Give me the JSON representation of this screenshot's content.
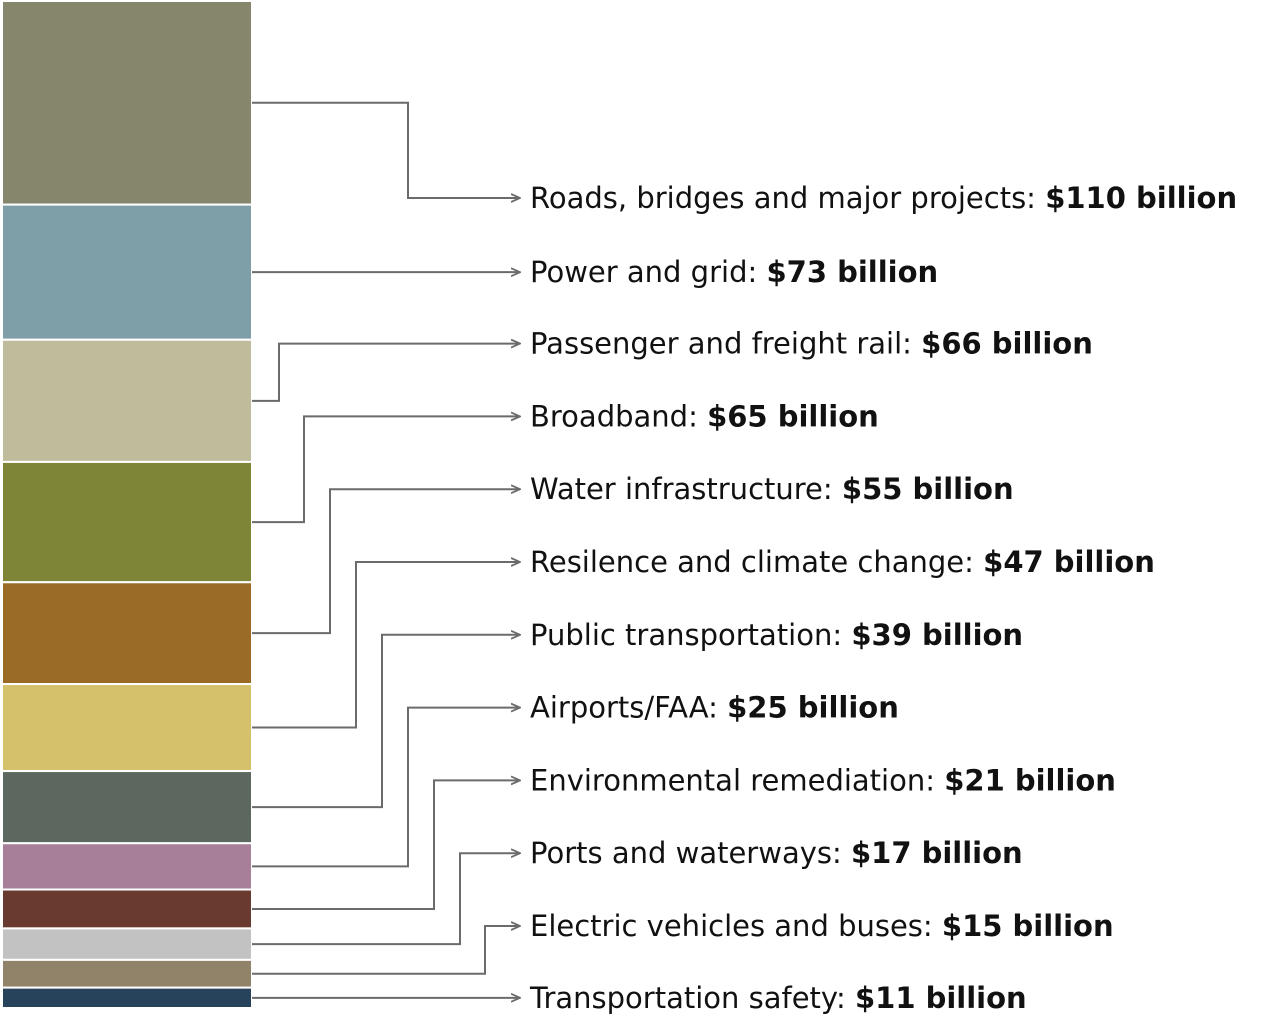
{
  "chart_data": {
    "type": "bar",
    "stacked": true,
    "orientation": "vertical-stack",
    "unit": "billion",
    "value_prefix": "$",
    "value_suffix": " billion",
    "categories": [
      "Roads, bridges and major projects",
      "Power and grid",
      "Passenger and freight rail",
      "Broadband",
      "Water infrastructure",
      "Resilence and climate change",
      "Public transportation",
      "Airports/FAA",
      "Environmental remediation",
      "Ports and waterways",
      "Electric vehicles and buses",
      "Transportation safety"
    ],
    "values": [
      110,
      73,
      66,
      65,
      55,
      47,
      39,
      25,
      21,
      17,
      15,
      11
    ],
    "value_labels": [
      "$110 billion",
      "$73 billion",
      "$66 billion",
      "$65 billion",
      "$55 billion",
      "$47 billion",
      "$39 billion",
      "$25 billion",
      "$21 billion",
      "$17 billion",
      "$15 billion",
      "$11 billion"
    ],
    "colors": [
      "#86866c",
      "#7f9fa8",
      "#bfbc9c",
      "#7f8536",
      "#9a6b27",
      "#d5c16c",
      "#5c685f",
      "#a77f99",
      "#693a2f",
      "#c2c2c2",
      "#91826a",
      "#27435c"
    ],
    "connector_color": "#6b6b6b",
    "legend": "right"
  }
}
